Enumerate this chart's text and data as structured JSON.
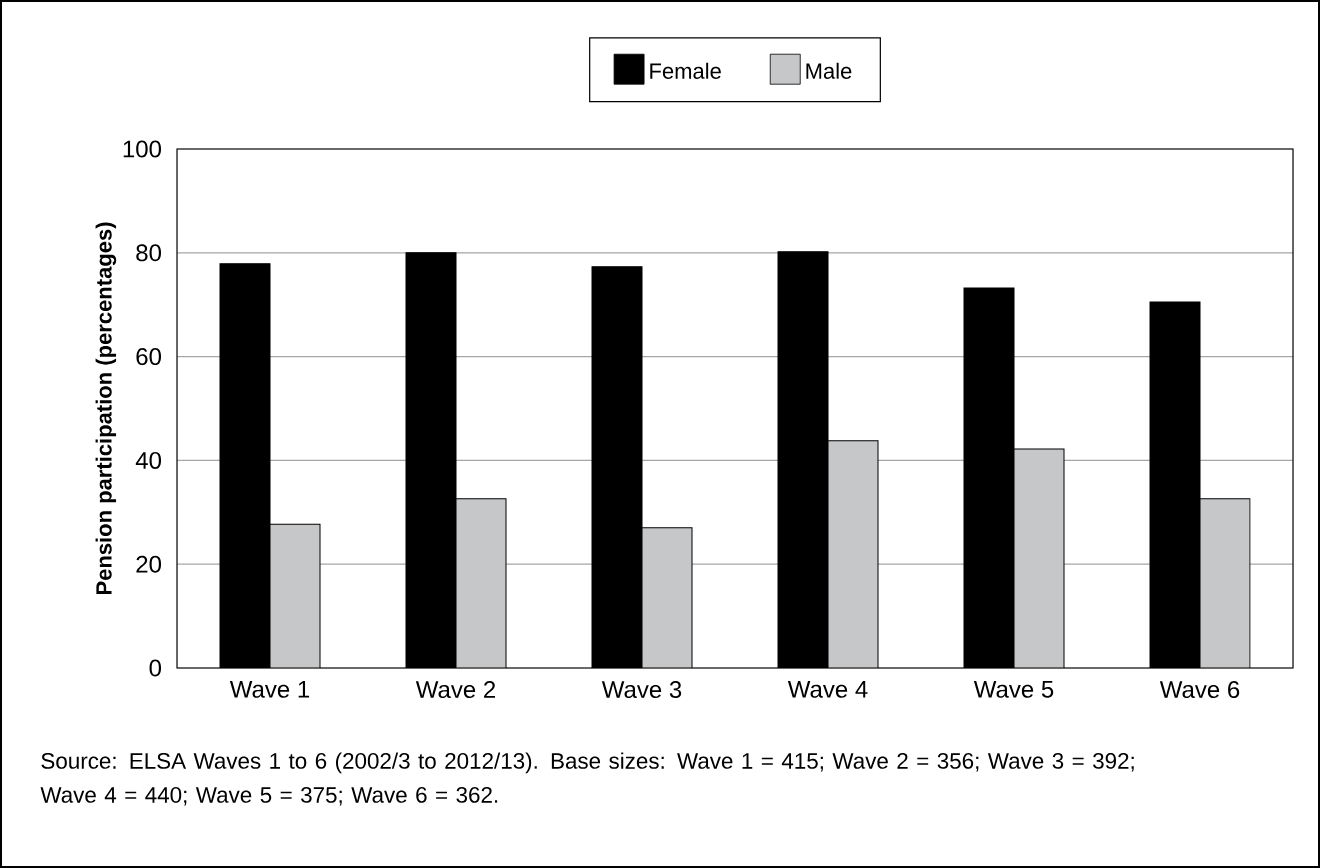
{
  "chart_data": {
    "type": "bar",
    "ylabel": "Pension participation (percentages)",
    "categories": [
      "Wave 1",
      "Wave 2",
      "Wave 3",
      "Wave 4",
      "Wave 5",
      "Wave 6"
    ],
    "series": [
      {
        "name": "Female",
        "color": "#000000",
        "values": [
          77.9,
          80.0,
          77.3,
          80.2,
          73.2,
          70.5
        ]
      },
      {
        "name": "Male",
        "color": "#c6c7c9",
        "values": [
          27.7,
          32.6,
          27.0,
          43.8,
          42.2,
          32.6
        ]
      }
    ],
    "ylim": [
      0,
      100
    ],
    "yticks": [
      0,
      20,
      40,
      60,
      80,
      100
    ],
    "grid": "y",
    "legend": "top",
    "annotations": [
      "Source: ELSA Waves 1 to 6 (2002/3 to 2012/13). Base sizes: Wave 1 = 415; Wave 2 = 356; Wave 3 = 392; Wave 4 = 440; Wave 5 = 375; Wave 6 = 362."
    ]
  }
}
